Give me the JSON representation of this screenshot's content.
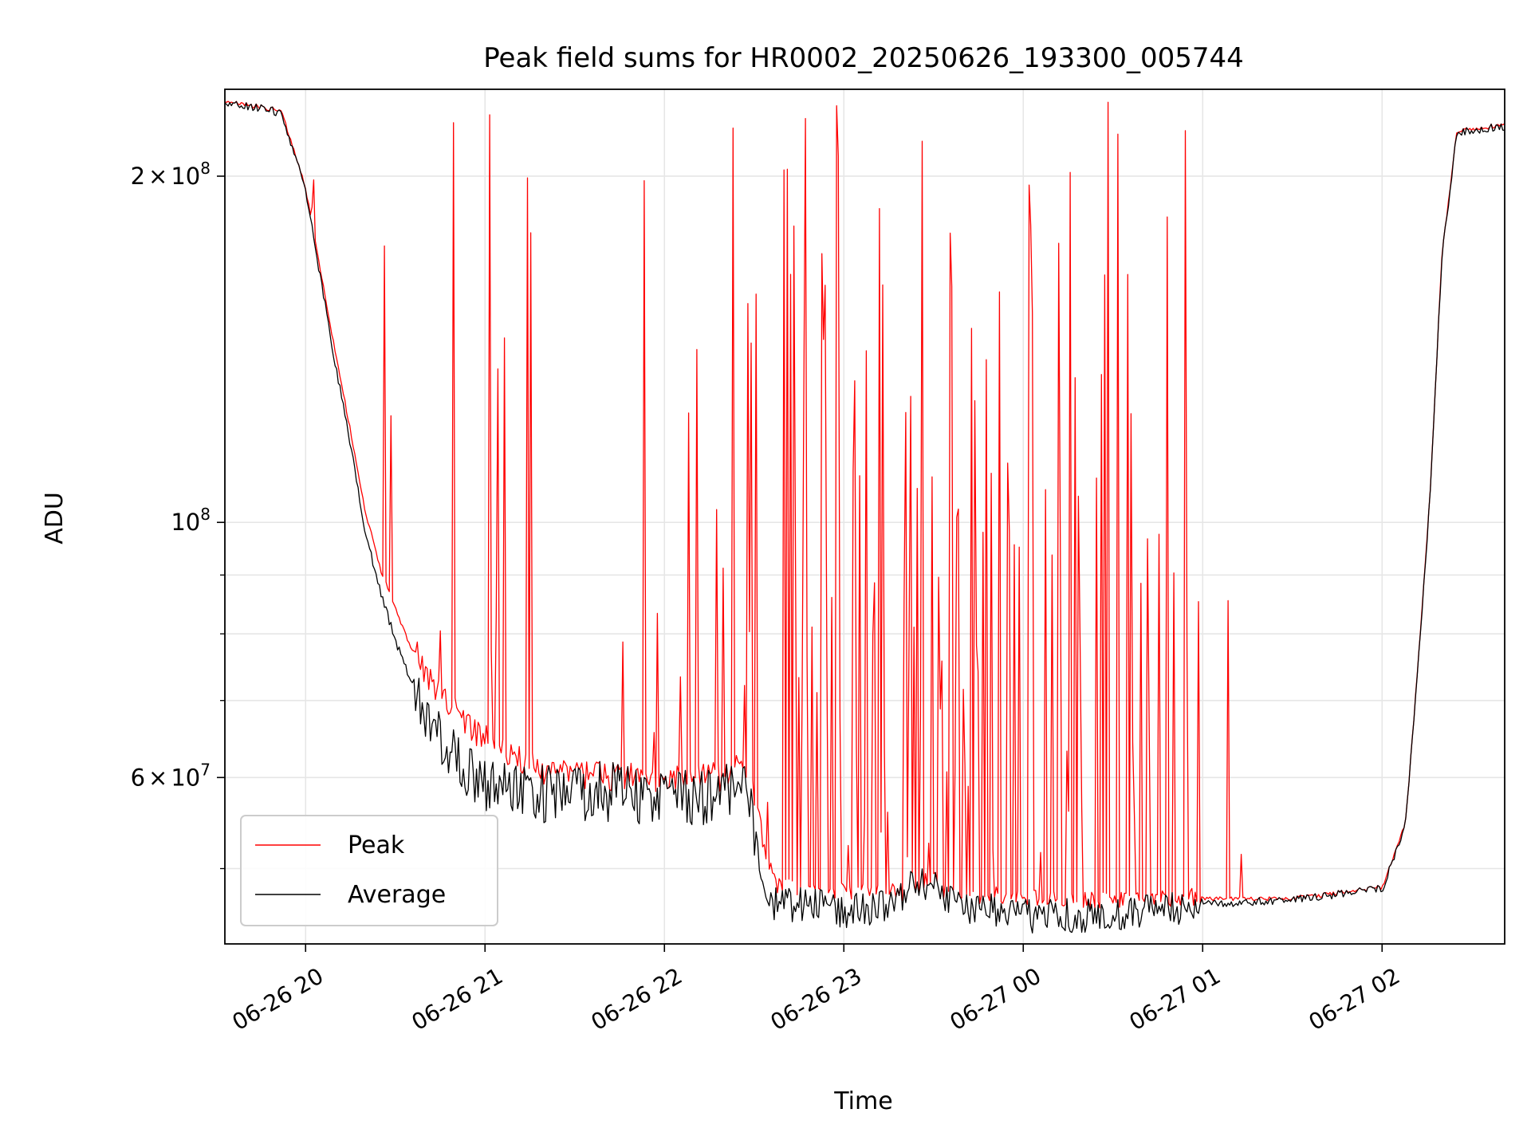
{
  "chart_data": {
    "type": "line",
    "title": "Peak field sums for HR0002_20250626_193300_005744",
    "xlabel": "Time",
    "ylabel": "ADU",
    "yscale": "log",
    "ylim": [
      43000000,
      238000000
    ],
    "xlim": [
      "06-26 19:33",
      "06-27 02:41"
    ],
    "grid": true,
    "legend": "lower-left",
    "x_ticks": [
      "06-26 20",
      "06-26 21",
      "06-26 22",
      "06-26 23",
      "06-27 00",
      "06-27 01",
      "06-27 02"
    ],
    "y_major_ticks": [
      {
        "value": 60000000,
        "mant": "6",
        "exp": "7",
        "coef": true
      },
      {
        "value": 100000000,
        "mant": "",
        "exp": "8",
        "coef": false
      },
      {
        "value": 200000000,
        "mant": "2",
        "exp": "8",
        "coef": true
      }
    ],
    "y_minor_ticks": [
      50000000,
      70000000,
      80000000,
      90000000
    ],
    "series": [
      {
        "name": "Peak",
        "color": "#ff0000",
        "baseline": [
          [
            "06-26 19:33",
            232000000
          ],
          [
            "06-26 19:45",
            229000000
          ],
          [
            "06-26 19:52",
            227000000
          ],
          [
            "06-26 20:00",
            195000000
          ],
          [
            "06-26 20:05",
            165000000
          ],
          [
            "06-26 20:10",
            140000000
          ],
          [
            "06-26 20:15",
            120000000
          ],
          [
            "06-26 20:20",
            102000000
          ],
          [
            "06-26 20:25",
            91000000
          ],
          [
            "06-26 20:30",
            84000000
          ],
          [
            "06-26 20:35",
            78000000
          ],
          [
            "06-26 20:40",
            73000000
          ],
          [
            "06-26 20:50",
            68000000
          ],
          [
            "06-26 21:00",
            64000000
          ],
          [
            "06-26 21:10",
            61500000
          ],
          [
            "06-26 21:20",
            60000000
          ],
          [
            "06-26 21:40",
            59500000
          ],
          [
            "06-26 22:00",
            59000000
          ],
          [
            "06-26 22:20",
            59500000
          ],
          [
            "06-26 22:28",
            61000000
          ],
          [
            "06-26 22:33",
            52000000
          ],
          [
            "06-26 22:37",
            48000000
          ],
          [
            "06-26 23:00",
            47500000
          ],
          [
            "06-27 00:00",
            47000000
          ],
          [
            "06-27 00:30",
            46500000
          ],
          [
            "06-27 01:00",
            47000000
          ],
          [
            "06-27 01:30",
            47000000
          ],
          [
            "06-27 02:00",
            48000000
          ],
          [
            "06-27 02:05",
            52000000
          ],
          [
            "06-27 02:08",
            55000000
          ],
          [
            "06-27 02:12",
            75000000
          ],
          [
            "06-27 02:16",
            105000000
          ],
          [
            "06-27 02:20",
            170000000
          ],
          [
            "06-27 02:25",
            218000000
          ],
          [
            "06-27 02:35",
            220000000
          ],
          [
            "06-27 02:41",
            221000000
          ]
        ]
      },
      {
        "name": "Average",
        "color": "#000000",
        "baseline": [
          [
            "06-26 19:33",
            232000000
          ],
          [
            "06-26 19:45",
            229000000
          ],
          [
            "06-26 19:52",
            227000000
          ],
          [
            "06-26 20:00",
            195000000
          ],
          [
            "06-26 20:05",
            163000000
          ],
          [
            "06-26 20:10",
            137000000
          ],
          [
            "06-26 20:15",
            117000000
          ],
          [
            "06-26 20:20",
            98000000
          ],
          [
            "06-26 20:25",
            87000000
          ],
          [
            "06-26 20:30",
            79000000
          ],
          [
            "06-26 20:35",
            73000000
          ],
          [
            "06-26 20:40",
            68000000
          ],
          [
            "06-26 20:50",
            63000000
          ],
          [
            "06-26 21:00",
            59000000
          ],
          [
            "06-26 21:20",
            58000000
          ],
          [
            "06-26 21:40",
            58500000
          ],
          [
            "06-26 22:00",
            57500000
          ],
          [
            "06-26 22:20",
            58000000
          ],
          [
            "06-26 22:28",
            60000000
          ],
          [
            "06-26 22:33",
            48000000
          ],
          [
            "06-26 22:37",
            46500000
          ],
          [
            "06-26 22:50",
            46500000
          ],
          [
            "06-26 23:00",
            45800000
          ],
          [
            "06-26 23:15",
            46500000
          ],
          [
            "06-26 23:25",
            49000000
          ],
          [
            "06-26 23:40",
            46500000
          ],
          [
            "06-27 00:00",
            45500000
          ],
          [
            "06-27 00:30",
            45500000
          ],
          [
            "06-27 01:00",
            46500000
          ],
          [
            "06-27 01:30",
            47000000
          ],
          [
            "06-27 02:00",
            48000000
          ],
          [
            "06-27 02:05",
            52000000
          ],
          [
            "06-27 02:08",
            55000000
          ],
          [
            "06-27 02:12",
            75000000
          ],
          [
            "06-27 02:16",
            105000000
          ],
          [
            "06-27 02:20",
            170000000
          ],
          [
            "06-27 02:25",
            218000000
          ],
          [
            "06-27 02:35",
            220000000
          ],
          [
            "06-27 02:41",
            221000000
          ]
        ]
      }
    ]
  }
}
